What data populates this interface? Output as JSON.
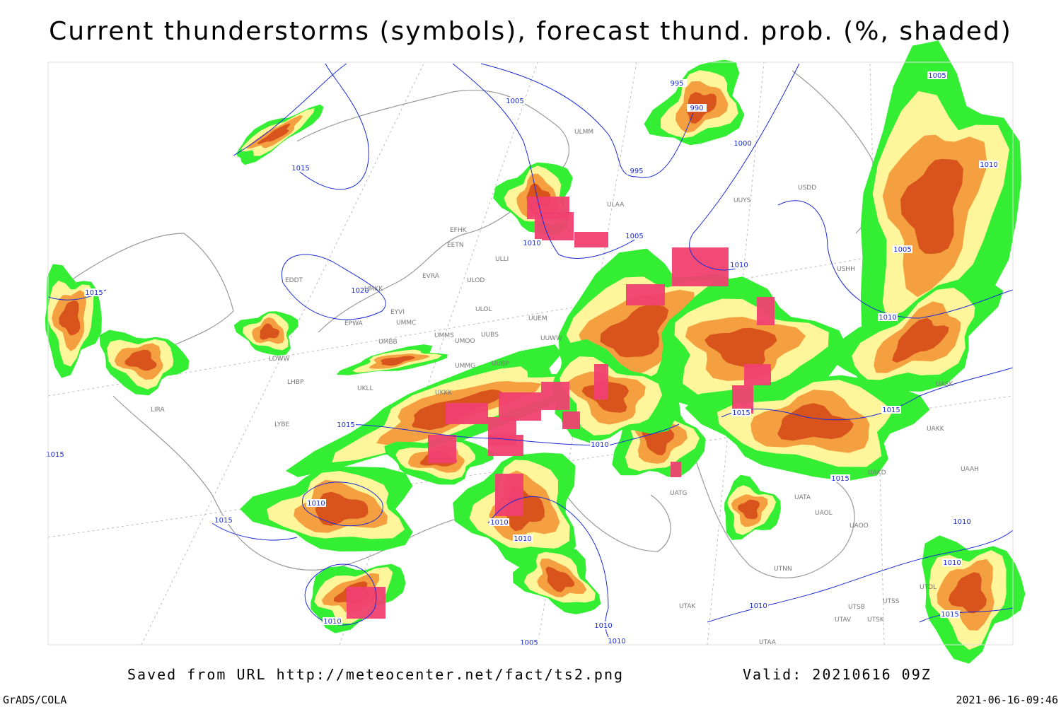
{
  "title": "Current thunderstorms (symbols), forecast thund. prob. (%, shaded)",
  "isobar_labels": [
    "1015",
    "1005",
    "995",
    "990",
    "1000",
    "995",
    "1005",
    "1010",
    "1005",
    "1010",
    "1010",
    "1005",
    "1015",
    "1020",
    "1010",
    "1015",
    "1015",
    "1010",
    "1015",
    "1015",
    "1015",
    "1010",
    "1015",
    "1010",
    "1010",
    "1010",
    "1010",
    "1010",
    "1015",
    "1010",
    "1010",
    "1010",
    "1005"
  ],
  "station_labels": [
    "ULAA",
    "ULMM",
    "EFHK",
    "EETN",
    "ULLI",
    "EVRA",
    "ULOD",
    "ULOL",
    "UUEM",
    "EYVI",
    "UMMC",
    "EPWA",
    "UMMS",
    "UMOO",
    "UUBS",
    "UUWW",
    "UMBB",
    "UMMG",
    "UUBP",
    "LOWW",
    "LHBP",
    "UKLL",
    "UKKK",
    "LIRA",
    "LYBE",
    "EDDT",
    "UMKK",
    "UUYS",
    "USDD",
    "USHH",
    "UATG",
    "UATA",
    "UAOL",
    "UAOO",
    "UTNN",
    "UTAK",
    "UTSS",
    "UTSB",
    "UTAV",
    "UTSK",
    "UTAA",
    "UAKK",
    "UAKD",
    "UASK",
    "UAAH",
    "UTDL"
  ],
  "footer": {
    "source": "Saved from URL http://meteocenter.net/fact/ts2.png",
    "valid": "Valid: 20210616 09Z",
    "software": "GrADS/COLA",
    "timestamp": "2021-06-16-09:46"
  }
}
